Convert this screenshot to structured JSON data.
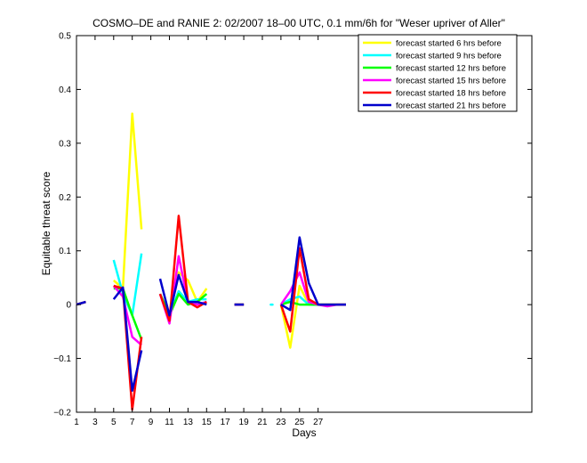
{
  "chart_data": {
    "type": "line",
    "title": "COSMO–DE and RANIE 2: 02/2007 18–00 UTC, 0.1 mm/6h for \"Weser upriver of Aller\"",
    "xlabel": "Days",
    "ylabel": "Equitable threat score",
    "xlim": [
      1,
      50
    ],
    "ylim": [
      -0.2,
      0.5
    ],
    "xticks": [
      1,
      3,
      5,
      7,
      9,
      11,
      13,
      15,
      17,
      19,
      21,
      23,
      25,
      27
    ],
    "xtick_labels": [
      "1",
      "3",
      "5",
      "7",
      "9",
      "11",
      "13",
      "15",
      "17",
      "19",
      "21",
      "23",
      "25",
      "27"
    ],
    "yticks": [
      -0.2,
      -0.1,
      0,
      0.1,
      0.2,
      0.3,
      0.4,
      0.5
    ],
    "ytick_labels": [
      "−0.2",
      "−0.1",
      "0",
      "0.1",
      "0.2",
      "0.3",
      "0.4",
      "0.5"
    ],
    "grid": false,
    "legend_position": "top-right",
    "series": [
      {
        "name": "forecast started 6 hrs before",
        "color": "#ffff00",
        "segments": [
          [
            [
              1,
              0
            ],
            [
              2,
              0.005
            ]
          ],
          [
            [
              5,
              0.045
            ],
            [
              6,
              0.03
            ],
            [
              7,
              0.355
            ],
            [
              8,
              0.14
            ]
          ],
          [
            [
              10,
              0.02
            ],
            [
              11,
              -0.02
            ],
            [
              12,
              0.06
            ],
            [
              13,
              0.045
            ],
            [
              14,
              0.005
            ],
            [
              15,
              0.03
            ]
          ],
          [
            [
              18,
              0
            ],
            [
              19,
              0
            ]
          ],
          [
            [
              23,
              0
            ],
            [
              24,
              -0.08
            ],
            [
              25,
              0.035
            ],
            [
              26,
              0
            ],
            [
              27,
              0
            ],
            [
              28,
              0
            ],
            [
              29,
              0
            ],
            [
              30,
              0
            ]
          ]
        ]
      },
      {
        "name": "forecast started 9 hrs before",
        "color": "#00ffff",
        "segments": [
          [
            [
              1,
              0
            ],
            [
              2,
              0.005
            ]
          ],
          [
            [
              5,
              0.083
            ],
            [
              6,
              0.02
            ],
            [
              7,
              -0.02
            ],
            [
              8,
              0.095
            ]
          ],
          [
            [
              10,
              0.02
            ],
            [
              11,
              -0.02
            ],
            [
              12,
              0.025
            ],
            [
              13,
              0.005
            ],
            [
              14,
              0.01
            ],
            [
              15,
              0.01
            ]
          ],
          [
            [
              18,
              0
            ],
            [
              19,
              0
            ]
          ],
          [
            [
              22,
              0
            ]
          ],
          [
            [
              23,
              0
            ],
            [
              24,
              0.01
            ],
            [
              25,
              0.015
            ],
            [
              26,
              0
            ],
            [
              27,
              0
            ],
            [
              28,
              0
            ],
            [
              29,
              0
            ],
            [
              30,
              0
            ]
          ]
        ]
      },
      {
        "name": "forecast started 12 hrs before",
        "color": "#00ff00",
        "segments": [
          [
            [
              1,
              0
            ],
            [
              2,
              0.005
            ]
          ],
          [
            [
              5,
              0.03
            ],
            [
              6,
              0.03
            ],
            [
              7,
              -0.02
            ],
            [
              8,
              -0.065
            ]
          ],
          [
            [
              10,
              0.02
            ],
            [
              11,
              -0.02
            ],
            [
              12,
              0.02
            ],
            [
              13,
              0
            ],
            [
              14,
              0.005
            ],
            [
              15,
              0.02
            ]
          ],
          [
            [
              18,
              0
            ],
            [
              19,
              0
            ]
          ],
          [
            [
              23,
              0
            ],
            [
              24,
              0.005
            ],
            [
              25,
              0
            ],
            [
              26,
              0
            ],
            [
              27,
              0
            ],
            [
              28,
              0
            ],
            [
              29,
              0
            ],
            [
              30,
              0
            ]
          ]
        ]
      },
      {
        "name": "forecast started 15 hrs before",
        "color": "#ff00ff",
        "segments": [
          [
            [
              1,
              0
            ],
            [
              2,
              0.005
            ]
          ],
          [
            [
              5,
              0.035
            ],
            [
              6,
              0.015
            ],
            [
              7,
              -0.06
            ],
            [
              8,
              -0.075
            ]
          ],
          [
            [
              10,
              0.02
            ],
            [
              11,
              -0.035
            ],
            [
              12,
              0.09
            ],
            [
              13,
              0.005
            ],
            [
              14,
              0
            ],
            [
              15,
              0.005
            ]
          ],
          [
            [
              18,
              0
            ],
            [
              19,
              0
            ]
          ],
          [
            [
              23,
              0
            ],
            [
              24,
              0.025
            ],
            [
              25,
              0.06
            ],
            [
              26,
              0.005
            ],
            [
              27,
              0
            ],
            [
              28,
              -0.003
            ],
            [
              29,
              0
            ],
            [
              30,
              0
            ]
          ]
        ]
      },
      {
        "name": "forecast started 18 hrs before",
        "color": "#ff0000",
        "segments": [
          [
            [
              1,
              0
            ],
            [
              2,
              0.005
            ]
          ],
          [
            [
              5,
              0.035
            ],
            [
              6,
              0.03
            ],
            [
              7,
              -0.195
            ],
            [
              8,
              -0.06
            ]
          ],
          [
            [
              10,
              0.02
            ],
            [
              11,
              -0.03
            ],
            [
              12,
              0.165
            ],
            [
              13,
              0.005
            ],
            [
              14,
              -0.005
            ],
            [
              15,
              0.005
            ]
          ],
          [
            [
              18,
              0
            ],
            [
              19,
              0
            ]
          ],
          [
            [
              23,
              0
            ],
            [
              24,
              -0.05
            ],
            [
              25,
              0.105
            ],
            [
              26,
              0.01
            ],
            [
              27,
              0
            ],
            [
              28,
              0
            ],
            [
              29,
              0
            ],
            [
              30,
              0
            ]
          ]
        ]
      },
      {
        "name": "forecast started 21 hrs before",
        "color": "#0000cc",
        "segments": [
          [
            [
              1,
              0
            ],
            [
              2,
              0.005
            ]
          ],
          [
            [
              5,
              0.01
            ],
            [
              6,
              0.032
            ],
            [
              7,
              -0.16
            ],
            [
              8,
              -0.085
            ]
          ],
          [
            [
              10,
              0.048
            ],
            [
              11,
              -0.02
            ],
            [
              12,
              0.055
            ],
            [
              13,
              0.005
            ],
            [
              14,
              0.005
            ],
            [
              15,
              0
            ]
          ],
          [
            [
              18,
              0
            ],
            [
              19,
              0
            ]
          ],
          [
            [
              23,
              0
            ],
            [
              24,
              -0.01
            ],
            [
              25,
              0.125
            ],
            [
              26,
              0.04
            ],
            [
              27,
              0
            ],
            [
              28,
              0
            ],
            [
              29,
              0
            ],
            [
              30,
              0
            ]
          ]
        ]
      }
    ]
  }
}
